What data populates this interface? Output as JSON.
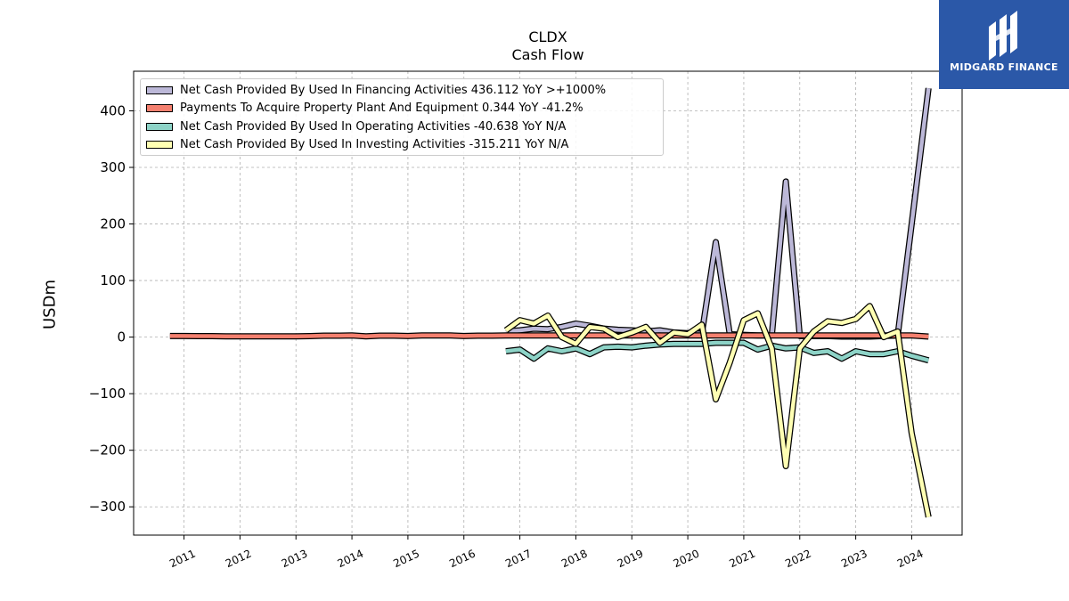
{
  "title": "CLDX",
  "subtitle": "Cash Flow",
  "logo": {
    "brand_text": "MIDGARD FINANCE"
  },
  "chart_data": {
    "type": "line",
    "ylabel": "USDm",
    "xlabel": "",
    "ylim": [
      -350,
      470
    ],
    "xlim": [
      2010.1,
      2024.9
    ],
    "yticks": [
      -300,
      -200,
      -100,
      0,
      100,
      200,
      300,
      400
    ],
    "ytick_labels": [
      "−300",
      "−200",
      "−100",
      "0",
      "100",
      "200",
      "300",
      "400"
    ],
    "xticks": [
      2011,
      2012,
      2013,
      2014,
      2015,
      2016,
      2017,
      2018,
      2019,
      2020,
      2021,
      2022,
      2023,
      2024
    ],
    "xtick_labels": [
      "2011",
      "2012",
      "2013",
      "2014",
      "2015",
      "2016",
      "2017",
      "2018",
      "2019",
      "2020",
      "2021",
      "2022",
      "2023",
      "2024"
    ],
    "grid": true,
    "legend_position": "top-left",
    "series": [
      {
        "name": "Net Cash Provided By Used In Financing Activities  436.112 YoY >+1000%",
        "color": "#bcb8d8",
        "x": [
          2016.75,
          2017.0,
          2017.25,
          2017.5,
          2017.75,
          2018.0,
          2018.25,
          2018.5,
          2018.75,
          2019.0,
          2019.25,
          2019.5,
          2019.75,
          2020.0,
          2020.25,
          2020.5,
          2020.75,
          2021.0,
          2021.25,
          2021.5,
          2021.75,
          2022.0,
          2022.25,
          2022.5,
          2022.75,
          2023.0,
          2023.25,
          2023.5,
          2023.75,
          2024.0,
          2024.3
        ],
        "y": [
          10,
          12,
          15,
          14,
          18,
          24,
          20,
          15,
          13,
          12,
          10,
          12,
          8,
          7,
          6,
          168,
          5,
          4,
          3,
          3,
          275,
          2,
          2,
          2,
          1,
          1,
          1,
          2,
          3,
          200,
          440
        ]
      },
      {
        "name": "Payments To Acquire Property Plant And Equipment  0.344 YoY -41.2%",
        "color": "#f4806f",
        "x": [
          2010.75,
          2011.0,
          2011.25,
          2011.5,
          2011.75,
          2012.0,
          2012.25,
          2012.5,
          2012.75,
          2013.0,
          2013.25,
          2013.5,
          2013.75,
          2014.0,
          2014.25,
          2014.5,
          2014.75,
          2015.0,
          2015.25,
          2015.5,
          2015.75,
          2016.0,
          2016.25,
          2016.5,
          2016.75,
          2017.0,
          2017.25,
          2017.5,
          2017.75,
          2018.0,
          2018.25,
          2018.5,
          2018.75,
          2019.0,
          2019.25,
          2019.5,
          2019.75,
          2020.0,
          2020.25,
          2020.5,
          2020.75,
          2021.0,
          2021.25,
          2021.5,
          2021.75,
          2022.0,
          2022.25,
          2022.5,
          2022.75,
          2023.0,
          2023.25,
          2023.5,
          2023.75,
          2024.0,
          2024.3
        ],
        "y": [
          2,
          2,
          1.8,
          1.8,
          1.5,
          1.5,
          1.5,
          1.5,
          1.5,
          1.5,
          1.8,
          2.5,
          2.5,
          3,
          1.5,
          2.5,
          2.5,
          2,
          3,
          3,
          3,
          2,
          2.5,
          2.5,
          3,
          3,
          3,
          3,
          3,
          3,
          3,
          3,
          3,
          3,
          3,
          3,
          3,
          3,
          3,
          3,
          3,
          3,
          3,
          3,
          3,
          3,
          3,
          3,
          3,
          3,
          3,
          3,
          3,
          3,
          1
        ]
      },
      {
        "name": "Net Cash Provided By Used In Operating Activities  -40.638 YoY N/A",
        "color": "#8dd3c7",
        "x": [
          2016.75,
          2017.0,
          2017.25,
          2017.5,
          2017.75,
          2018.0,
          2018.25,
          2018.5,
          2018.75,
          2019.0,
          2019.25,
          2019.5,
          2019.75,
          2020.0,
          2020.25,
          2020.5,
          2020.75,
          2021.0,
          2021.25,
          2021.5,
          2021.75,
          2022.0,
          2022.25,
          2022.5,
          2022.75,
          2023.0,
          2023.25,
          2023.5,
          2023.75,
          2024.0,
          2024.3
        ],
        "y": [
          -25,
          -22,
          -38,
          -20,
          -25,
          -20,
          -30,
          -18,
          -17,
          -18,
          -15,
          -13,
          -12,
          -12,
          -12,
          -10,
          -10,
          -10,
          -22,
          -15,
          -20,
          -18,
          -28,
          -25,
          -38,
          -25,
          -30,
          -30,
          -25,
          -33,
          -41
        ]
      },
      {
        "name": "Net Cash Provided By Used In Investing Activities  -315.211 YoY N/A",
        "color": "#ffffb3",
        "x": [
          2016.75,
          2017.0,
          2017.25,
          2017.5,
          2017.75,
          2018.0,
          2018.25,
          2018.5,
          2018.75,
          2019.0,
          2019.25,
          2019.5,
          2019.75,
          2020.0,
          2020.25,
          2020.5,
          2020.75,
          2021.0,
          2021.25,
          2021.5,
          2021.75,
          2022.0,
          2022.25,
          2022.5,
          2022.75,
          2023.0,
          2023.25,
          2023.5,
          2023.75,
          2024.0,
          2024.3
        ],
        "y": [
          12,
          30,
          24,
          38,
          0,
          -12,
          18,
          15,
          0,
          8,
          18,
          -10,
          8,
          5,
          22,
          -110,
          -45,
          30,
          42,
          -20,
          -228,
          -20,
          10,
          28,
          25,
          32,
          55,
          0,
          10,
          -170,
          -318
        ]
      }
    ]
  }
}
